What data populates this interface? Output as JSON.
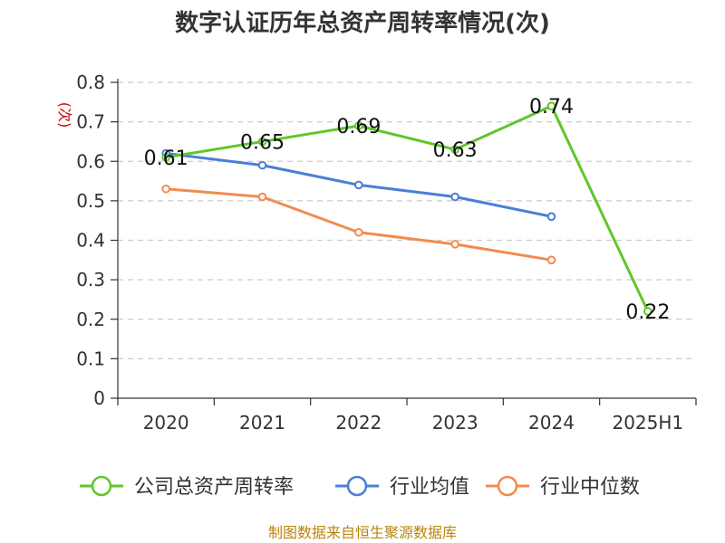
{
  "chart_data": {
    "type": "line",
    "title": "数字认证历年总资产周转率情况(次)",
    "ylabel": "(次)",
    "categories": [
      "2020",
      "2021",
      "2022",
      "2023",
      "2024",
      "2025H1"
    ],
    "yticks": [
      "0",
      "0.1",
      "0.2",
      "0.3",
      "0.4",
      "0.5",
      "0.6",
      "0.7",
      "0.8"
    ],
    "ylim": [
      0,
      0.8
    ],
    "grid": true,
    "legend_position": "bottom",
    "series": [
      {
        "name": "公司总资产周转率",
        "values": [
          0.61,
          0.65,
          0.69,
          0.63,
          0.74,
          0.22
        ],
        "color": "#5ec72b",
        "labels": [
          "0.61",
          "0.65",
          "0.69",
          "0.63",
          "0.74",
          "0.22"
        ]
      },
      {
        "name": "行业均值",
        "values": [
          0.62,
          0.59,
          0.54,
          0.51,
          0.46,
          null
        ],
        "color": "#4a7fd6"
      },
      {
        "name": "行业中位数",
        "values": [
          0.53,
          0.51,
          0.42,
          0.39,
          0.35,
          null
        ],
        "color": "#f28b50"
      }
    ]
  },
  "source": "制图数据来自恒生聚源数据库"
}
